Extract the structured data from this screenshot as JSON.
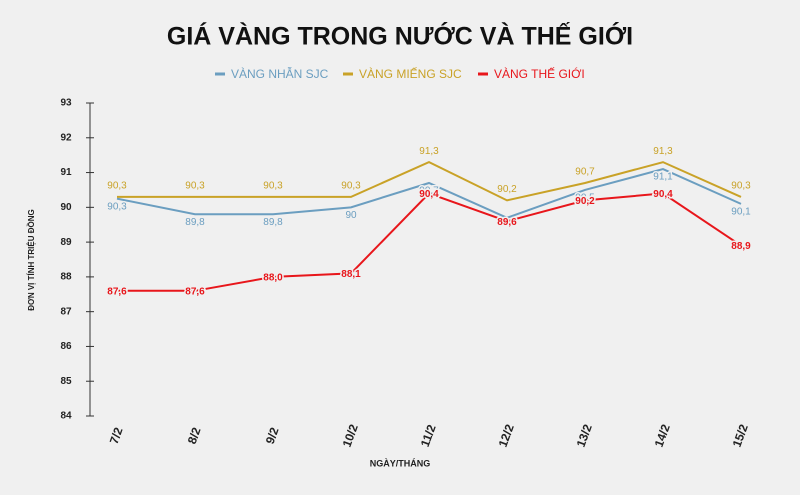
{
  "chart_data": {
    "type": "line",
    "title": "GIÁ VÀNG TRONG NƯỚC VÀ THẾ GIỚI",
    "y_label": "ĐƠN VỊ TÍNH TRIỆU ĐỒNG",
    "x_label": "NGÀY/THÁNG",
    "categories": [
      "7/2",
      "8/2",
      "9/2",
      "10/2",
      "11/2",
      "12/2",
      "13/2",
      "14/2",
      "15/2"
    ],
    "series": [
      {
        "name": "VÀNG NHẪN SJC",
        "color": "#6b9ec0",
        "values": [
          90.25,
          89.8,
          89.8,
          90,
          90.7,
          89.7,
          90.5,
          91.1,
          90.1
        ],
        "value_labels": [
          "90,3",
          "89,8",
          "89,8",
          "90",
          "90,7",
          null,
          "90,5",
          "91,1",
          "90,1"
        ]
      },
      {
        "name": "VÀNG MIẾNG SJC",
        "color": "#c9a227",
        "values": [
          90.3,
          90.3,
          90.3,
          90.3,
          91.3,
          90.2,
          90.7,
          91.3,
          90.3
        ],
        "value_labels": [
          "90,3",
          "90,3",
          "90,3",
          "90,3",
          "91,3",
          "90,2",
          "90,7",
          "91,3",
          "90,3"
        ]
      },
      {
        "name": "VÀNG THẾ GIỚI",
        "color": "#e8161b",
        "values": [
          87.6,
          87.6,
          88.0,
          88.1,
          90.4,
          89.6,
          90.2,
          90.4,
          88.9
        ],
        "value_labels": [
          "87,6",
          "87,6",
          "88,0",
          "88,1",
          "90,4",
          "89,6",
          "90,2",
          "90,4",
          "88,9"
        ]
      }
    ],
    "ylim": [
      84,
      93
    ],
    "yticks": [
      84,
      85,
      86,
      87,
      88,
      89,
      90,
      91,
      92,
      93
    ]
  }
}
